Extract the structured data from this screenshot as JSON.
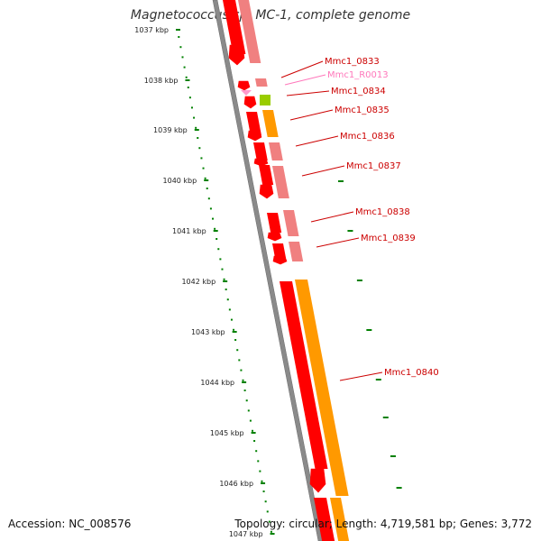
{
  "title": "Magnetococcus sp. MC-1, complete genome",
  "accession_text": "Accession: NC_008576",
  "stats_text": "Topology: circular; Length: 4,719,581 bp; Genes: 3,772",
  "colors": {
    "cds_forward": "#ff0000",
    "cds_reverse_shade": "#f08080",
    "gene_orange": "#ff9900",
    "rrna_pink": "#ff99cc",
    "green_feature": "#99cc00",
    "backbone": "#808080",
    "ruler": "#008000"
  },
  "ruler": {
    "unit": "kbp",
    "labels": [
      "1037 kbp",
      "1038 kbp",
      "1039 kbp",
      "1040 kbp",
      "1041 kbp",
      "1042 kbp",
      "1043 kbp",
      "1044 kbp",
      "1045 kbp",
      "1046 kbp",
      "1047 kbp"
    ]
  },
  "genes": [
    {
      "label": "Mmc1_0833",
      "color": "#cc0000"
    },
    {
      "label": "Mmc1_R0013",
      "color": "#ff77bb"
    },
    {
      "label": "Mmc1_0834",
      "color": "#cc0000"
    },
    {
      "label": "Mmc1_0835",
      "color": "#cc0000"
    },
    {
      "label": "Mmc1_0836",
      "color": "#cc0000"
    },
    {
      "label": "Mmc1_0837",
      "color": "#cc0000"
    },
    {
      "label": "Mmc1_0838",
      "color": "#cc0000"
    },
    {
      "label": "Mmc1_0839",
      "color": "#cc0000"
    },
    {
      "label": "Mmc1_0840",
      "color": "#cc0000"
    }
  ]
}
